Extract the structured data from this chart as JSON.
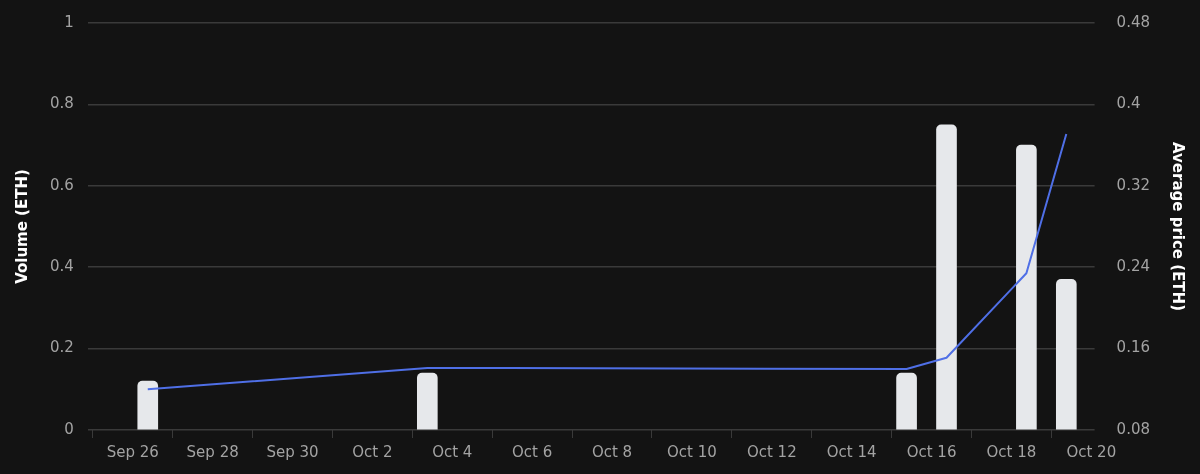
{
  "chart_data": {
    "type": "bar",
    "x": [
      "--09-26T09:00",
      "--10-03T09:00",
      "--10-15T09:00",
      "--10-16T09:00",
      "--10-18T09:00",
      "--10-19T09:00"
    ],
    "series": [
      {
        "color": "#e6e8eb",
        "values": [
          0.12,
          0.14,
          0.14,
          0.75,
          0.7,
          0.37
        ]
      },
      {
        "type": "line",
        "axis": "y2",
        "color": "#4f6fe6",
        "values": [
          0.12,
          0.141,
          0.14,
          0.151,
          0.234,
          0.371
        ]
      }
    ],
    "ylabel": "Volume (ETH)",
    "y2label": "Average price (ETH)",
    "ylim": [
      0,
      1
    ],
    "yticks": [
      0,
      0.2,
      0.4,
      0.6,
      0.8,
      1
    ],
    "y2lim": [
      0.08,
      0.48
    ],
    "y2ticks": [
      0.08,
      0.16,
      0.24,
      0.32,
      0.4,
      0.48
    ],
    "xlim": [
      "--09-24T21:00",
      "--10-20T02:00"
    ],
    "xticks": [
      {
        "value": "--09-26",
        "label": "Sep 26"
      },
      {
        "value": "--09-28",
        "label": "Sep 28"
      },
      {
        "value": "--09-30",
        "label": "Sep 30"
      },
      {
        "value": "--10-02",
        "label": "Oct 2"
      },
      {
        "value": "--10-04",
        "label": "Oct 4"
      },
      {
        "value": "--10-06",
        "label": "Oct 6"
      },
      {
        "value": "--10-08",
        "label": "Oct 8"
      },
      {
        "value": "--10-10",
        "label": "Oct 10"
      },
      {
        "value": "--10-12",
        "label": "Oct 12"
      },
      {
        "value": "--10-14",
        "label": "Oct 14"
      },
      {
        "value": "--10-16",
        "label": "Oct 16"
      },
      {
        "value": "--10-18",
        "label": "Oct 18"
      },
      {
        "value": "--10-20",
        "label": "Oct 20"
      }
    ],
    "grid": "y",
    "legend": false,
    "marker": "none",
    "line_style": "solid"
  }
}
